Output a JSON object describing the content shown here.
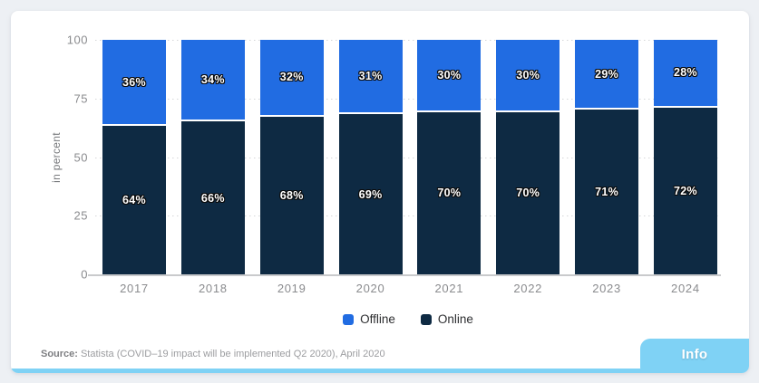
{
  "chart_data": {
    "type": "bar",
    "stacked": true,
    "categories": [
      "2017",
      "2018",
      "2019",
      "2020",
      "2021",
      "2022",
      "2023",
      "2024"
    ],
    "series": [
      {
        "name": "Offline",
        "color": "#216ce2",
        "values": [
          36,
          34,
          32,
          31,
          30,
          30,
          29,
          28
        ]
      },
      {
        "name": "Online",
        "color": "#0e2a43",
        "values": [
          64,
          66,
          68,
          69,
          70,
          70,
          71,
          72
        ]
      }
    ],
    "value_suffix": "%",
    "xlabel": "",
    "ylabel": "in percent",
    "ylim": [
      0,
      100
    ],
    "yticks": [
      100,
      75,
      50,
      25,
      0
    ],
    "grid": "horizontal-dotted",
    "legend_position": "bottom"
  },
  "legend": {
    "items": [
      {
        "label": "Offline",
        "color": "#216ce2"
      },
      {
        "label": "Online",
        "color": "#0e2a43"
      }
    ]
  },
  "source": {
    "prefix": "Source:",
    "text": "Statista (COVID–19 impact will be implemented Q2 2020), April 2020"
  },
  "info_button": {
    "label": "Info",
    "color": "#7fd2f5"
  },
  "colors": {
    "page_background": "#edf0f4",
    "card_background": "#ffffff",
    "axis_line": "#c9cacc",
    "gridline": "#d6d7d9",
    "tick_label": "#8a8b8e",
    "segment_gap": "#ffffff",
    "value_label_text": "#ffffff"
  }
}
